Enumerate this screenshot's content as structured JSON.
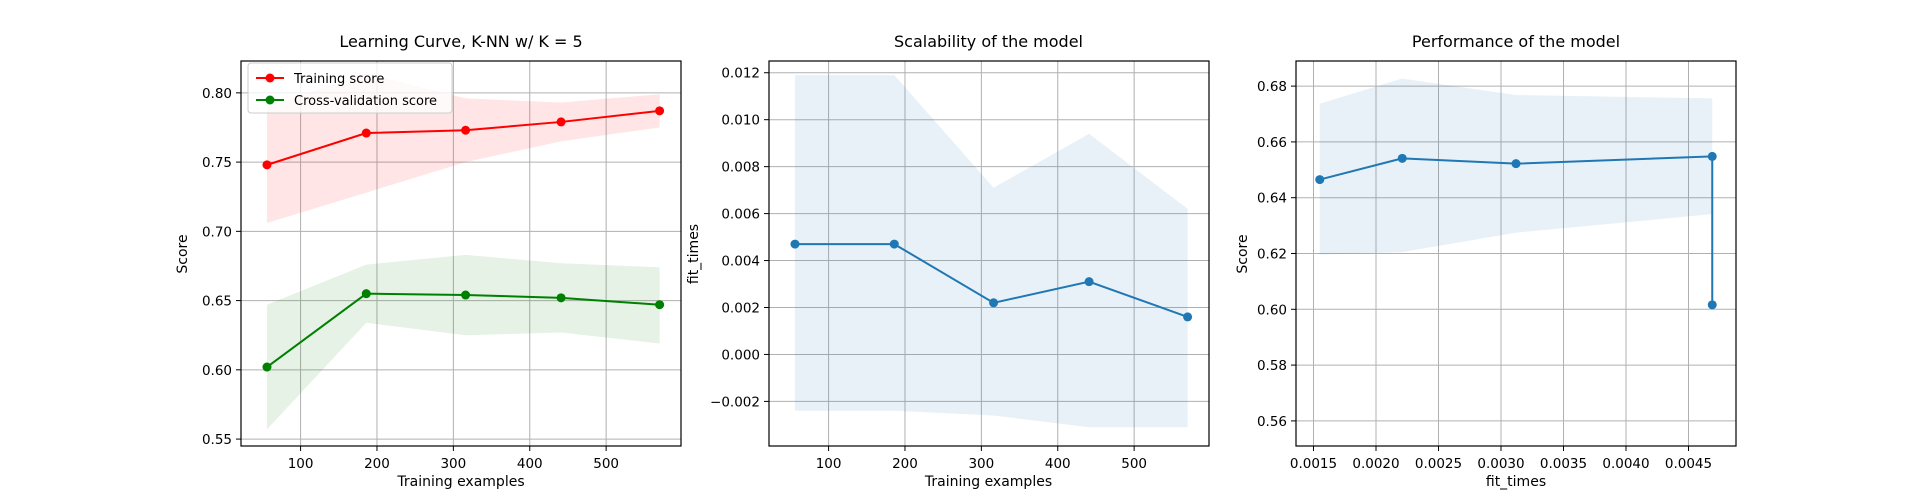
{
  "chart_data": [
    {
      "type": "line",
      "title": "Learning Curve, K-NN w/ K = 5",
      "xlabel": "Training examples",
      "ylabel": "Score",
      "xlim": [
        22,
        598
      ],
      "ylim": [
        0.545,
        0.823
      ],
      "xticks": [
        100,
        200,
        300,
        400,
        500
      ],
      "xtick_labels": [
        "100",
        "200",
        "300",
        "400",
        "500"
      ],
      "yticks": [
        0.55,
        0.6,
        0.65,
        0.7,
        0.75,
        0.8
      ],
      "ytick_labels": [
        "0.55",
        "0.60",
        "0.65",
        "0.70",
        "0.75",
        "0.80"
      ],
      "grid": true,
      "legend": "upper left",
      "series": [
        {
          "name": "Training score",
          "color": "#ff0000",
          "band_color": "#ff0000",
          "x": [
            56,
            186,
            316,
            441,
            570
          ],
          "values": [
            0.748,
            0.771,
            0.773,
            0.779,
            0.787
          ],
          "lower": [
            0.706,
            0.728,
            0.75,
            0.765,
            0.775
          ],
          "upper": [
            0.79,
            0.814,
            0.796,
            0.793,
            0.799
          ]
        },
        {
          "name": "Cross-validation score",
          "color": "#008000",
          "band_color": "#008000",
          "x": [
            56,
            186,
            316,
            441,
            570
          ],
          "values": [
            0.602,
            0.655,
            0.654,
            0.652,
            0.647
          ],
          "lower": [
            0.557,
            0.634,
            0.625,
            0.627,
            0.619
          ],
          "upper": [
            0.647,
            0.676,
            0.683,
            0.677,
            0.674
          ]
        }
      ]
    },
    {
      "type": "line",
      "title": "Scalability of the model",
      "xlabel": "Training examples",
      "ylabel": "fit_times",
      "xlim": [
        22,
        598
      ],
      "ylim": [
        -0.0039,
        0.0125
      ],
      "xticks": [
        100,
        200,
        300,
        400,
        500
      ],
      "xtick_labels": [
        "100",
        "200",
        "300",
        "400",
        "500"
      ],
      "yticks": [
        -0.002,
        0.0,
        0.002,
        0.004,
        0.006,
        0.008,
        0.01,
        0.012
      ],
      "ytick_labels": [
        "−0.002",
        "0.000",
        "0.002",
        "0.004",
        "0.006",
        "0.008",
        "0.010",
        "0.012"
      ],
      "grid": true,
      "series": [
        {
          "color": "#1f77b4",
          "band_color": "#1f77b4",
          "x": [
            56,
            186,
            316,
            441,
            570
          ],
          "values": [
            0.0047,
            0.0047,
            0.0022,
            0.0031,
            0.0016
          ],
          "lower": [
            -0.0024,
            -0.0024,
            -0.0026,
            -0.0031,
            -0.0031
          ],
          "upper": [
            0.0119,
            0.0119,
            0.0071,
            0.0094,
            0.0062
          ]
        }
      ]
    },
    {
      "type": "line",
      "title": "Performance of the model",
      "xlabel": "fit_times",
      "ylabel": "Score",
      "xlim": [
        0.00136,
        0.00488
      ],
      "ylim": [
        0.551,
        0.689
      ],
      "xticks": [
        0.0015,
        0.002,
        0.0025,
        0.003,
        0.0035,
        0.004,
        0.0045
      ],
      "xtick_labels": [
        "0.0015",
        "0.0020",
        "0.0025",
        "0.0030",
        "0.0035",
        "0.0040",
        "0.0045"
      ],
      "yticks": [
        0.56,
        0.58,
        0.6,
        0.62,
        0.64,
        0.66,
        0.68
      ],
      "ytick_labels": [
        "0.56",
        "0.58",
        "0.60",
        "0.62",
        "0.64",
        "0.66",
        "0.68"
      ],
      "grid": true,
      "series": [
        {
          "color": "#1f77b4",
          "band_color": "#1f77b4",
          "x": [
            0.00155,
            0.00221,
            0.00312,
            0.00469,
            0.00469
          ],
          "values": [
            0.6465,
            0.6541,
            0.6522,
            0.6548,
            0.6016
          ],
          "lower": [
            0.6196,
            0.6205,
            0.6275,
            0.6341,
            0.6341
          ],
          "upper": [
            0.6737,
            0.6827,
            0.6768,
            0.6756,
            0.6756
          ]
        }
      ]
    }
  ]
}
